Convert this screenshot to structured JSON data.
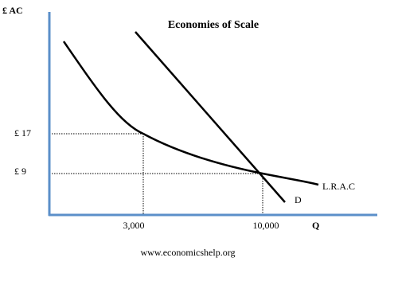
{
  "title": "Economies of Scale",
  "y_axis_label": "£ AC",
  "x_axis_label": "Q",
  "y_labels": [
    "£ 17",
    "£ 9"
  ],
  "x_labels": [
    "3,000",
    "10,000"
  ],
  "curve_labels": [
    "L.R.A.C",
    "D"
  ],
  "footer": "www.economicshelp.org"
}
